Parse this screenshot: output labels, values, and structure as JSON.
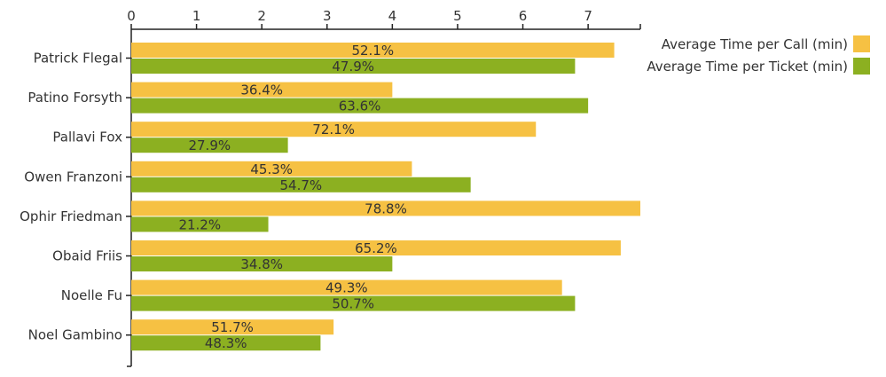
{
  "chart_data": {
    "type": "bar",
    "orientation": "horizontal",
    "x_axis_position": "top",
    "xlim": [
      0,
      7.8
    ],
    "x_ticks": [
      0,
      1,
      2,
      3,
      4,
      5,
      6,
      7
    ],
    "grid": false,
    "legend_position": "top-right",
    "categories": [
      "Patrick Flegal",
      "Patino Forsyth",
      "Pallavi Fox",
      "Owen Franzoni",
      "Ophir Friedman",
      "Obaid Friis",
      "Noelle Fu",
      "Noel Gambino"
    ],
    "series": [
      {
        "name": "Average Time per Call (min)",
        "color": "#F6C143",
        "values": [
          7.4,
          4.0,
          6.2,
          4.3,
          7.8,
          7.5,
          6.6,
          3.1
        ],
        "labels": [
          "52.1%",
          "36.4%",
          "72.1%",
          "45.3%",
          "78.8%",
          "65.2%",
          "49.3%",
          "51.7%"
        ]
      },
      {
        "name": "Average Time per Ticket (min)",
        "color": "#8CB021",
        "values": [
          6.8,
          7.0,
          2.4,
          5.2,
          2.1,
          4.0,
          6.8,
          2.9
        ],
        "labels": [
          "47.9%",
          "63.6%",
          "27.9%",
          "54.7%",
          "21.2%",
          "34.8%",
          "50.7%",
          "48.3%"
        ]
      }
    ]
  }
}
